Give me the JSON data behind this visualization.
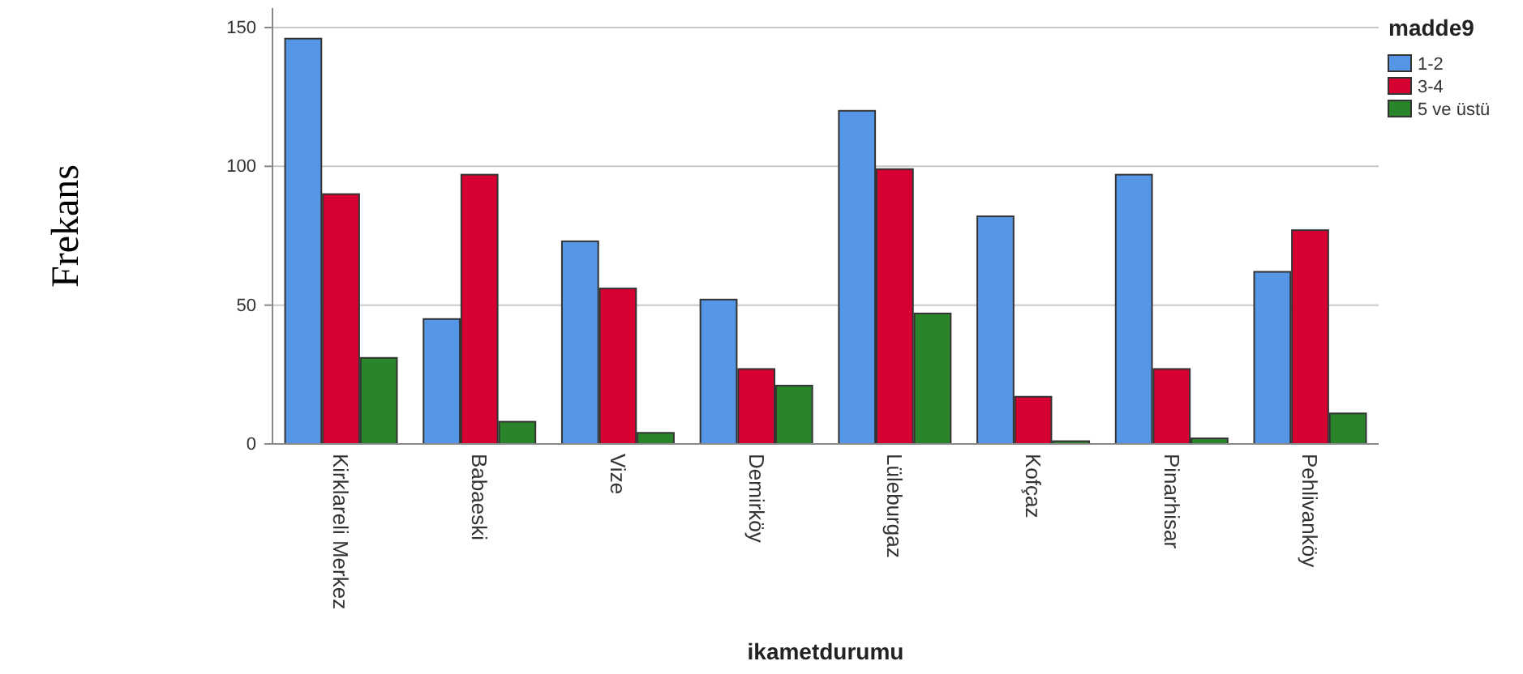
{
  "chart_data": {
    "type": "bar",
    "xlabel": "ikametdurumu",
    "ylabel": "Frekans",
    "legend_title": "madde9",
    "categories": [
      "Kirklareli Merkez",
      "Babaeski",
      "Vize",
      "Demirköy",
      "Lüleburgaz",
      "Kofçaz",
      "Pinarhisar",
      "Pehlivanköy"
    ],
    "series": [
      {
        "name": "1-2",
        "color": "#5596e6",
        "values": [
          146,
          45,
          73,
          52,
          120,
          82,
          97,
          62
        ]
      },
      {
        "name": "3-4",
        "color": "#d60032",
        "values": [
          90,
          97,
          56,
          27,
          99,
          17,
          27,
          77
        ]
      },
      {
        "name": "5 ve üstü",
        "color": "#2a8429",
        "values": [
          31,
          8,
          4,
          21,
          47,
          1,
          2,
          11
        ]
      }
    ],
    "ylim": [
      0,
      157
    ],
    "yticks": [
      0,
      50,
      100,
      150
    ],
    "grid": "y",
    "legend": "top right"
  }
}
